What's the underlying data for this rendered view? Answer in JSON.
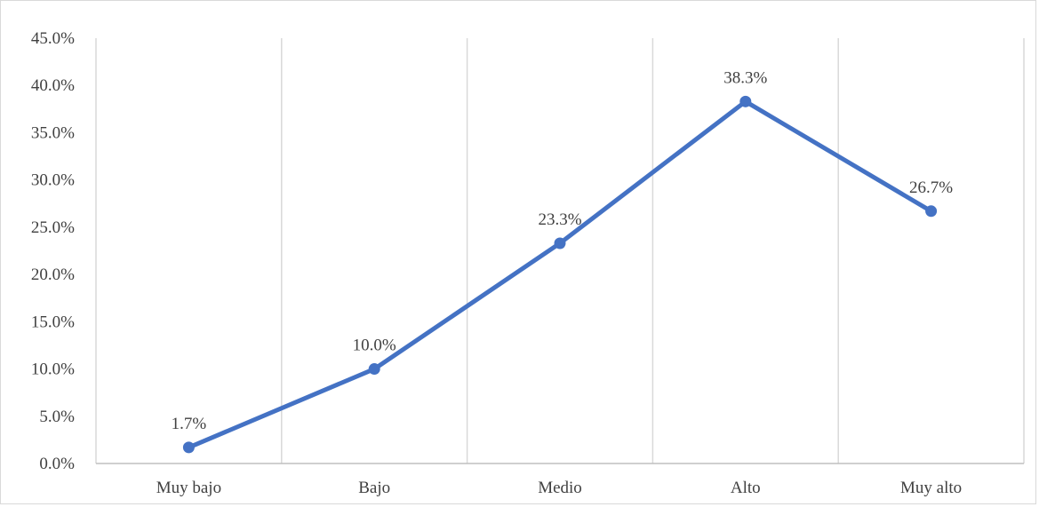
{
  "chart_data": {
    "type": "line",
    "title": "",
    "xlabel": "",
    "ylabel": "",
    "categories": [
      "Muy bajo",
      "Bajo",
      "Medio",
      "Alto",
      "Muy alto"
    ],
    "series": [
      {
        "values": [
          1.7,
          10.0,
          23.3,
          38.3,
          26.7
        ],
        "data_labels": [
          "1.7%",
          "10.0%",
          "23.3%",
          "38.3%",
          "26.7%"
        ],
        "color": "#4472c4"
      }
    ],
    "ylim": [
      0,
      45
    ],
    "y_ticks": [
      0,
      5,
      10,
      15,
      20,
      25,
      30,
      35,
      40,
      45
    ],
    "y_tick_labels": [
      "0.0%",
      "5.0%",
      "10.0%",
      "15.0%",
      "20.0%",
      "25.0%",
      "30.0%",
      "35.0%",
      "40.0%",
      "45.0%"
    ],
    "grid": "vertical",
    "gridline_color": "#d9d9d9",
    "axis_color": "#bfbfbf",
    "legend": "none",
    "markers": true
  }
}
